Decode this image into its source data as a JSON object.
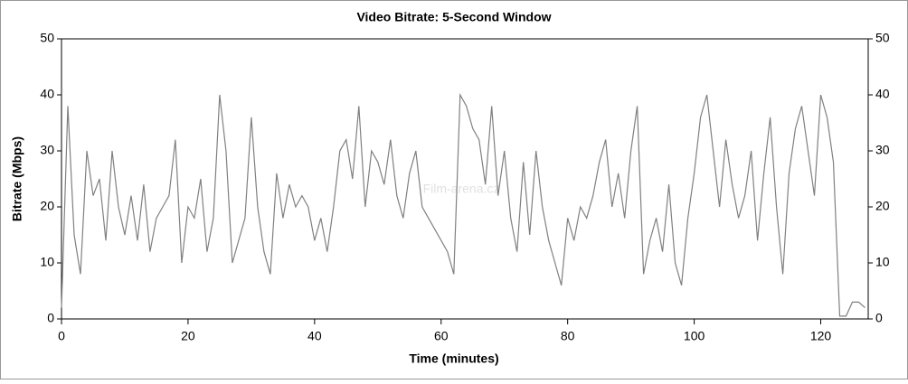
{
  "chart_data": {
    "type": "line",
    "title": "Video Bitrate: 5-Second Window",
    "x_label": "Time (minutes)",
    "y_label": "Bitrate (Mbps)",
    "watermark": "Film-arena.cz",
    "x": [
      0,
      1,
      2,
      3,
      4,
      5,
      6,
      7,
      8,
      9,
      10,
      11,
      12,
      13,
      14,
      15,
      16,
      17,
      18,
      19,
      20,
      21,
      22,
      23,
      24,
      25,
      26,
      27,
      28,
      29,
      30,
      31,
      32,
      33,
      34,
      35,
      36,
      37,
      38,
      39,
      40,
      41,
      42,
      43,
      44,
      45,
      46,
      47,
      48,
      49,
      50,
      51,
      52,
      53,
      54,
      55,
      56,
      57,
      58,
      59,
      60,
      61,
      62,
      63,
      64,
      65,
      66,
      67,
      68,
      69,
      70,
      71,
      72,
      73,
      74,
      75,
      76,
      77,
      78,
      79,
      80,
      81,
      82,
      83,
      84,
      85,
      86,
      87,
      88,
      89,
      90,
      91,
      92,
      93,
      94,
      95,
      96,
      97,
      98,
      99,
      100,
      101,
      102,
      103,
      104,
      105,
      106,
      107,
      108,
      109,
      110,
      111,
      112,
      113,
      114,
      115,
      116,
      117,
      118,
      119,
      120,
      121,
      122,
      123,
      124,
      125,
      126,
      127
    ],
    "series": [
      {
        "name": "Video Bitrate",
        "color": "#808080",
        "values": [
          2,
          38,
          15,
          8,
          30,
          22,
          25,
          14,
          30,
          20,
          15,
          22,
          14,
          24,
          12,
          18,
          20,
          22,
          32,
          10,
          20,
          18,
          25,
          12,
          18,
          40,
          30,
          10,
          14,
          18,
          36,
          20,
          12,
          8,
          26,
          18,
          24,
          20,
          22,
          20,
          14,
          18,
          12,
          20,
          30,
          32,
          25,
          38,
          20,
          30,
          28,
          24,
          32,
          22,
          18,
          26,
          30,
          20,
          18,
          16,
          14,
          12,
          8,
          40,
          38,
          34,
          32,
          24,
          38,
          22,
          30,
          18,
          12,
          28,
          15,
          30,
          20,
          14,
          10,
          6,
          18,
          14,
          20,
          18,
          22,
          28,
          32,
          20,
          26,
          18,
          30,
          38,
          8,
          14,
          18,
          12,
          24,
          10,
          6,
          18,
          26,
          36,
          40,
          30,
          20,
          32,
          24,
          18,
          22,
          30,
          14,
          26,
          36,
          20,
          8,
          26,
          34,
          38,
          30,
          22,
          40,
          36,
          28,
          0.5,
          0.5,
          3,
          3,
          2
        ]
      }
    ],
    "xlim": [
      0,
      127.5
    ],
    "ylim": [
      0,
      50
    ],
    "xticks": [
      0,
      20,
      40,
      60,
      80,
      100,
      120
    ],
    "yticks": [
      0,
      10,
      20,
      30,
      40,
      50
    ],
    "y2lim": [
      0,
      50
    ],
    "y2ticks": [
      0,
      10,
      20,
      30,
      40,
      50
    ],
    "grid": false
  }
}
